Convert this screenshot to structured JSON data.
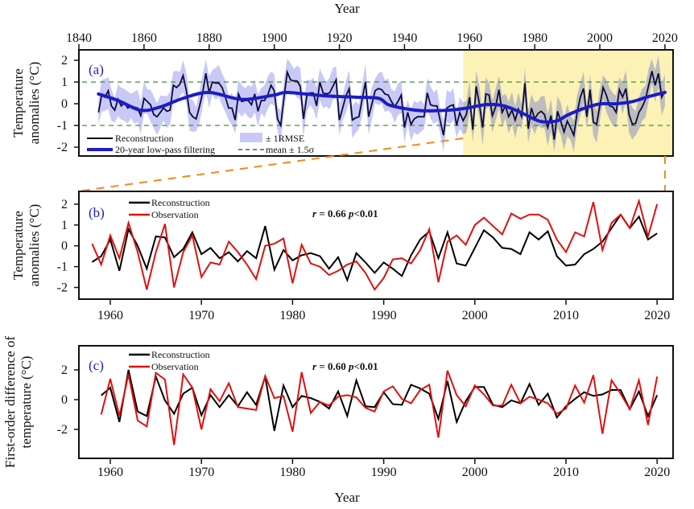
{
  "chart_data": [
    {
      "id": "a",
      "type": "line",
      "panel_label": "(a)",
      "title": "Year",
      "xlabel": "Year",
      "ylabel_lines": [
        "Temperature",
        "anomalies (°C)"
      ],
      "xlim": [
        1840,
        2020
      ],
      "ylim": [
        -2.3,
        2.3
      ],
      "xticks": [
        1840,
        1860,
        1880,
        1900,
        1920,
        1940,
        1960,
        1980,
        2000,
        2020
      ],
      "yticks": [
        2,
        1,
        0,
        -1,
        -2
      ],
      "x_axis_position": "top",
      "highlight_period": [
        1958,
        2020
      ],
      "start_year": 1846,
      "rmse": 0.7,
      "mean_band": [
        -1,
        1
      ],
      "reconstruction": [
        -0.4,
        0.4,
        0.3,
        0.6,
        -0.1,
        -0.3,
        0.2,
        -0.1,
        0.05,
        -0.2,
        -0.1,
        -0.15,
        -0.2,
        -0.55,
        0.25,
        0.1,
        -0.05,
        -0.5,
        -0.6,
        -0.4,
        -0.2,
        -0.35,
        -0.3,
        0.85,
        0.75,
        0.9,
        1.3,
        0.6,
        -0.4,
        -0.6,
        -0.7,
        -0.15,
        0.5,
        1.4,
        0.5,
        1.0,
        0.95,
        0.95,
        0.75,
        0.3,
        -0.2,
        -0.2,
        -0.75,
        0.45,
        0.1,
        0.15,
        0.15,
        -0.05,
        0.45,
        -0.35,
        0.15,
        0.15,
        0.4,
        0.85,
        0.6,
        -0.7,
        -1.0,
        0.3,
        1.45,
        1.1,
        1.05,
        1.05,
        0.8,
        -0.7,
        0.35,
        0.5,
        0.5,
        -0.1,
        1.0,
        0.5,
        0.45,
        0.5,
        0.8,
        1.1,
        -0.75,
        -0.2,
        0.35,
        0.7,
        -0.75,
        -0.65,
        -0.6,
        0.2,
        1.0,
        -0.6,
        0.0,
        0.6,
        0.7,
        0.65,
        0.45,
        0.4,
        0.1,
        -0.13,
        0.1,
        0.4,
        -1.1,
        -0.4,
        -0.95,
        -0.7,
        -0.6,
        -0.6,
        -0.6,
        0.5,
        -0.05,
        -0.1,
        -0.1,
        -0.8,
        -1.45,
        -0.2,
        -0.1,
        -0.05,
        -1.0,
        -0.4,
        -0.78,
        -0.5,
        0.3,
        -1.2,
        0.8,
        0.0,
        -1.1,
        0.45,
        0.4,
        -0.55,
        -0.15,
        0.65,
        -0.4,
        -0.1,
        -0.6,
        -0.3,
        -0.75,
        -0.25,
        -0.6,
        0.95,
        -1.15,
        -0.2,
        -0.7,
        -0.45,
        -0.35,
        -0.5,
        -1.1,
        -0.55,
        -1.65,
        -0.35,
        -0.8,
        -1.3,
        -0.8,
        -1.1,
        -1.45,
        -0.45,
        0.3,
        0.7,
        -0.6,
        0.65,
        -0.85,
        -0.95,
        -0.1,
        0.75,
        0.4,
        -0.1,
        -0.15,
        -0.4,
        0.65,
        0.3,
        0.7,
        -0.5,
        -0.95,
        -0.9,
        -0.4,
        -0.15,
        0.2,
        0.85,
        1.5,
        0.85,
        1.4,
        0.3,
        0.6
      ],
      "lowpass": {
        "x": [
          1846,
          1852,
          1859,
          1865,
          1872,
          1880,
          1890,
          1900,
          1904,
          1915,
          1925,
          1932,
          1935,
          1940,
          1945,
          1950,
          1955,
          1960,
          1965,
          1970,
          1975,
          1980,
          1983,
          1987,
          1990,
          1995,
          2000,
          2005,
          2010,
          2015,
          2020
        ],
        "y": [
          0.45,
          0.15,
          -0.3,
          -0.15,
          0.25,
          0.52,
          0.2,
          0.4,
          0.52,
          0.37,
          0.3,
          0.25,
          -0.04,
          -0.22,
          -0.32,
          -0.32,
          -0.28,
          -0.18,
          -0.04,
          -0.08,
          -0.35,
          -0.72,
          -0.84,
          -0.78,
          -0.53,
          -0.22,
          -0.01,
          0.0,
          0.1,
          0.33,
          0.52
        ]
      },
      "legend": {
        "reconstruction": "Reconstruction",
        "lowpass": "20-year low-pass filtering",
        "rmse": "± 1RMSE",
        "mean": "mean ± 1.5σ"
      }
    },
    {
      "id": "b",
      "type": "line",
      "panel_label": "(b)",
      "ylabel_lines": [
        "Temperature",
        "anomalies (°C)"
      ],
      "xlim": [
        1957,
        2021
      ],
      "ylim": [
        -2.45,
        2.45
      ],
      "xticks": [
        1960,
        1970,
        1980,
        1990,
        2000,
        2010,
        2020
      ],
      "yticks": [
        2,
        1,
        0,
        -1,
        -2
      ],
      "start_year": 1958,
      "series": [
        {
          "name": "Reconstruction",
          "color": "#000000",
          "values": [
            -0.78,
            -0.5,
            0.3,
            -1.2,
            0.8,
            0.0,
            -1.1,
            0.45,
            0.4,
            -0.55,
            -0.15,
            0.65,
            -0.4,
            -0.1,
            -0.6,
            -0.3,
            -0.75,
            -0.25,
            -0.6,
            0.95,
            -1.15,
            -0.2,
            -0.7,
            -0.45,
            -0.35,
            -0.5,
            -1.1,
            -0.55,
            -1.65,
            -0.35,
            -0.8,
            -1.3,
            -0.8,
            -1.1,
            -1.45,
            -0.45,
            0.3,
            0.7,
            -0.6,
            0.65,
            -0.85,
            -0.95,
            -0.1,
            0.75,
            0.4,
            -0.1,
            -0.15,
            -0.4,
            0.65,
            0.3,
            0.7,
            -0.5,
            -0.95,
            -0.9,
            -0.4,
            -0.15,
            0.2,
            0.85,
            1.5,
            0.85,
            1.4,
            0.3,
            0.6
          ]
        },
        {
          "name": "Observation",
          "color": "#e01010",
          "values": [
            0.1,
            -0.9,
            0.5,
            -0.6,
            1.1,
            -0.3,
            -2.1,
            -0.3,
            1.05,
            -2.0,
            -0.3,
            0.5,
            -1.5,
            -0.8,
            -0.9,
            0.2,
            -0.3,
            -0.9,
            -1.6,
            0.0,
            0.1,
            0.35,
            -1.8,
            0.05,
            -0.85,
            -1.0,
            -1.4,
            -1.2,
            -0.9,
            -0.75,
            -1.3,
            -2.1,
            -1.55,
            -0.65,
            -0.6,
            -0.85,
            -0.2,
            0.8,
            -1.75,
            0.2,
            0.5,
            0.05,
            1.0,
            1.35,
            0.95,
            0.55,
            1.55,
            1.3,
            1.5,
            1.5,
            1.25,
            0.3,
            -0.3,
            0.65,
            0.45,
            2.1,
            -0.2,
            1.1,
            1.5,
            0.85,
            2.15,
            0.45,
            2.0
          ]
        }
      ],
      "stats": {
        "r": "r",
        "r_value": " = 0.66  ",
        "p": "p",
        "p_value": "<0.01"
      }
    },
    {
      "id": "c",
      "type": "line",
      "panel_label": "(c)",
      "xlabel": "Year",
      "ylabel_lines": [
        "First-order difference of",
        "temperature (°C)"
      ],
      "xlim": [
        1957,
        2021
      ],
      "ylim": [
        -3.6,
        3.6
      ],
      "xticks": [
        1960,
        1970,
        1980,
        1990,
        2000,
        2010,
        2020
      ],
      "yticks": [
        2,
        0,
        -2
      ],
      "start_year": 1959,
      "series": [
        {
          "name": "Reconstruction",
          "color": "#000000",
          "values": [
            0.28,
            0.8,
            -1.5,
            2.0,
            -0.8,
            -1.1,
            1.55,
            -0.05,
            -0.95,
            0.4,
            0.8,
            -1.05,
            0.3,
            -0.5,
            0.3,
            -0.45,
            0.5,
            -0.35,
            1.55,
            -2.1,
            0.95,
            -0.5,
            0.25,
            0.1,
            -0.15,
            -0.6,
            0.55,
            -1.1,
            1.3,
            -0.45,
            -0.5,
            0.5,
            -0.3,
            -0.35,
            1.0,
            0.75,
            0.4,
            -1.3,
            1.25,
            -1.5,
            -0.1,
            0.85,
            0.85,
            -0.35,
            -0.5,
            -0.05,
            -0.25,
            1.05,
            -0.35,
            0.4,
            -1.2,
            -0.45,
            0.05,
            0.5,
            0.25,
            0.35,
            0.65,
            0.65,
            -0.65,
            0.55,
            -1.1,
            0.3
          ]
        },
        {
          "name": "Observation",
          "color": "#e01010",
          "values": [
            -1.0,
            1.4,
            -1.1,
            1.7,
            -1.4,
            -1.8,
            1.8,
            1.35,
            -3.05,
            1.7,
            0.8,
            -2.0,
            0.7,
            -0.1,
            1.1,
            -0.5,
            -0.6,
            -0.7,
            1.6,
            0.1,
            0.25,
            -2.15,
            1.85,
            -0.9,
            -0.15,
            -0.4,
            0.2,
            0.3,
            0.15,
            -0.55,
            -0.8,
            0.55,
            0.9,
            0.05,
            -0.25,
            0.65,
            1.0,
            -2.55,
            1.95,
            0.3,
            -0.45,
            0.95,
            0.35,
            -0.4,
            -0.4,
            1.0,
            -0.25,
            0.2,
            0.0,
            -0.25,
            -0.95,
            -0.6,
            0.95,
            -0.2,
            1.65,
            -2.3,
            1.3,
            0.4,
            -0.65,
            1.3,
            -1.7,
            1.55
          ]
        }
      ],
      "stats": {
        "r": "r",
        "r_value": " = 0.60  ",
        "p": "p",
        "p_value": "<0.01"
      }
    }
  ],
  "colors": {
    "reconstruction_a": "#0b0b3b",
    "lowpass": "#1c1cc8",
    "rmse_band": "#c9c9f7",
    "rmse_band_highlight": "#bdbdbd",
    "highlight": "#fcf2b6",
    "mean_line": "#3f8f3f",
    "connector": "#f28a1c",
    "panel_label": "#1a1acc"
  }
}
